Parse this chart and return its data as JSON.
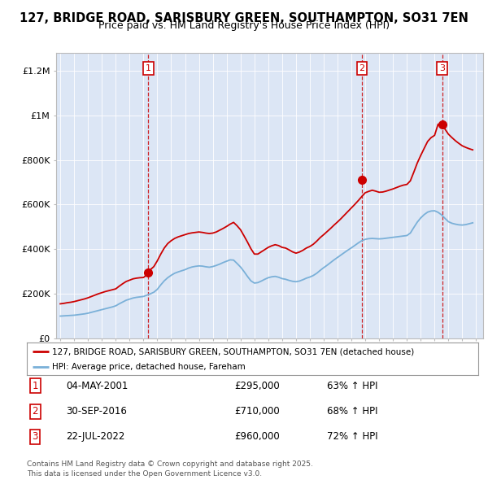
{
  "title": "127, BRIDGE ROAD, SARISBURY GREEN, SOUTHAMPTON, SO31 7EN",
  "subtitle": "Price paid vs. HM Land Registry's House Price Index (HPI)",
  "title_fontsize": 10.5,
  "subtitle_fontsize": 9,
  "background_color": "#ffffff",
  "plot_bg_color": "#dce6f5",
  "grid_color": "#ffffff",
  "ylabel_ticks": [
    "£0",
    "£200K",
    "£400K",
    "£600K",
    "£800K",
    "£1M",
    "£1.2M"
  ],
  "ytick_values": [
    0,
    200000,
    400000,
    600000,
    800000,
    1000000,
    1200000
  ],
  "ylim": [
    0,
    1280000
  ],
  "xlim_start": 1994.7,
  "xlim_end": 2025.5,
  "hpi_color": "#7ab0d8",
  "price_color": "#cc0000",
  "sale_marker_color": "#cc0000",
  "sale_dashed_color": "#cc0000",
  "legend_label_red": "127, BRIDGE ROAD, SARISBURY GREEN, SOUTHAMPTON, SO31 7EN (detached house)",
  "legend_label_blue": "HPI: Average price, detached house, Fareham",
  "sales": [
    {
      "num": 1,
      "date_str": "04-MAY-2001",
      "year": 2001.35,
      "price": 295000,
      "pct": "63%",
      "dir": "↑"
    },
    {
      "num": 2,
      "date_str": "30-SEP-2016",
      "year": 2016.75,
      "price": 710000,
      "pct": "68%",
      "dir": "↑"
    },
    {
      "num": 3,
      "date_str": "22-JUL-2022",
      "year": 2022.55,
      "price": 960000,
      "pct": "72%",
      "dir": "↑"
    }
  ],
  "footer": "Contains HM Land Registry data © Crown copyright and database right 2025.\nThis data is licensed under the Open Government Licence v3.0.",
  "hpi_data_x": [
    1995.0,
    1995.25,
    1995.5,
    1995.75,
    1996.0,
    1996.25,
    1996.5,
    1996.75,
    1997.0,
    1997.25,
    1997.5,
    1997.75,
    1998.0,
    1998.25,
    1998.5,
    1998.75,
    1999.0,
    1999.25,
    1999.5,
    1999.75,
    2000.0,
    2000.25,
    2000.5,
    2000.75,
    2001.0,
    2001.25,
    2001.5,
    2001.75,
    2002.0,
    2002.25,
    2002.5,
    2002.75,
    2003.0,
    2003.25,
    2003.5,
    2003.75,
    2004.0,
    2004.25,
    2004.5,
    2004.75,
    2005.0,
    2005.25,
    2005.5,
    2005.75,
    2006.0,
    2006.25,
    2006.5,
    2006.75,
    2007.0,
    2007.25,
    2007.5,
    2007.75,
    2008.0,
    2008.25,
    2008.5,
    2008.75,
    2009.0,
    2009.25,
    2009.5,
    2009.75,
    2010.0,
    2010.25,
    2010.5,
    2010.75,
    2011.0,
    2011.25,
    2011.5,
    2011.75,
    2012.0,
    2012.25,
    2012.5,
    2012.75,
    2013.0,
    2013.25,
    2013.5,
    2013.75,
    2014.0,
    2014.25,
    2014.5,
    2014.75,
    2015.0,
    2015.25,
    2015.5,
    2015.75,
    2016.0,
    2016.25,
    2016.5,
    2016.75,
    2017.0,
    2017.25,
    2017.5,
    2017.75,
    2018.0,
    2018.25,
    2018.5,
    2018.75,
    2019.0,
    2019.25,
    2019.5,
    2019.75,
    2020.0,
    2020.25,
    2020.5,
    2020.75,
    2021.0,
    2021.25,
    2021.5,
    2021.75,
    2022.0,
    2022.25,
    2022.5,
    2022.75,
    2023.0,
    2023.25,
    2023.5,
    2023.75,
    2024.0,
    2024.25,
    2024.5,
    2024.75
  ],
  "hpi_data_y": [
    100000,
    101000,
    102000,
    103000,
    104000,
    106000,
    108000,
    110000,
    113000,
    117000,
    121000,
    125000,
    129000,
    133000,
    137000,
    141000,
    146000,
    155000,
    163000,
    171000,
    176000,
    181000,
    184000,
    186000,
    188000,
    194000,
    200000,
    207000,
    220000,
    240000,
    258000,
    272000,
    283000,
    292000,
    298000,
    303000,
    308000,
    315000,
    320000,
    323000,
    325000,
    324000,
    321000,
    319000,
    322000,
    327000,
    333000,
    340000,
    346000,
    352000,
    351000,
    336000,
    320000,
    300000,
    278000,
    258000,
    248000,
    250000,
    257000,
    265000,
    272000,
    276000,
    278000,
    274000,
    268000,
    265000,
    260000,
    256000,
    254000,
    257000,
    263000,
    270000,
    275000,
    282000,
    292000,
    305000,
    317000,
    328000,
    340000,
    352000,
    363000,
    374000,
    385000,
    396000,
    406000,
    417000,
    428000,
    438000,
    444000,
    447000,
    448000,
    447000,
    446000,
    447000,
    449000,
    451000,
    453000,
    455000,
    457000,
    459000,
    461000,
    472000,
    497000,
    521000,
    540000,
    555000,
    566000,
    571000,
    572000,
    565000,
    554000,
    538000,
    523000,
    516000,
    512000,
    509000,
    508000,
    510000,
    514000,
    518000
  ],
  "price_data_x": [
    1995.0,
    1995.25,
    1995.5,
    1995.75,
    1996.0,
    1996.25,
    1996.5,
    1996.75,
    1997.0,
    1997.25,
    1997.5,
    1997.75,
    1998.0,
    1998.25,
    1998.5,
    1998.75,
    1999.0,
    1999.25,
    1999.5,
    1999.75,
    2000.0,
    2000.25,
    2000.5,
    2000.75,
    2001.0,
    2001.25,
    2001.35,
    2001.5,
    2001.75,
    2002.0,
    2002.25,
    2002.5,
    2002.75,
    2003.0,
    2003.25,
    2003.5,
    2003.75,
    2004.0,
    2004.25,
    2004.5,
    2004.75,
    2005.0,
    2005.25,
    2005.5,
    2005.75,
    2006.0,
    2006.25,
    2006.5,
    2006.75,
    2007.0,
    2007.25,
    2007.5,
    2007.75,
    2008.0,
    2008.25,
    2008.5,
    2008.75,
    2009.0,
    2009.25,
    2009.5,
    2009.75,
    2010.0,
    2010.25,
    2010.5,
    2010.75,
    2011.0,
    2011.25,
    2011.5,
    2011.75,
    2012.0,
    2012.25,
    2012.5,
    2012.75,
    2013.0,
    2013.25,
    2013.5,
    2013.75,
    2014.0,
    2014.25,
    2014.5,
    2014.75,
    2015.0,
    2015.25,
    2015.5,
    2015.75,
    2016.0,
    2016.25,
    2016.5,
    2016.75,
    2017.0,
    2017.25,
    2017.5,
    2017.75,
    2018.0,
    2018.25,
    2018.5,
    2018.75,
    2019.0,
    2019.25,
    2019.5,
    2019.75,
    2020.0,
    2020.25,
    2020.5,
    2020.75,
    2021.0,
    2021.25,
    2021.5,
    2021.75,
    2022.0,
    2022.25,
    2022.55,
    2022.75,
    2023.0,
    2023.25,
    2023.5,
    2023.75,
    2024.0,
    2024.25,
    2024.5,
    2024.75
  ],
  "price_data_y": [
    155000,
    157000,
    160000,
    162000,
    165000,
    169000,
    173000,
    177000,
    182000,
    188000,
    194000,
    200000,
    205000,
    210000,
    214000,
    218000,
    222000,
    234000,
    245000,
    255000,
    261000,
    267000,
    270000,
    272000,
    273000,
    285000,
    295000,
    308000,
    322000,
    348000,
    378000,
    405000,
    425000,
    438000,
    448000,
    455000,
    460000,
    465000,
    470000,
    473000,
    475000,
    477000,
    475000,
    472000,
    470000,
    472000,
    477000,
    485000,
    493000,
    502000,
    512000,
    520000,
    505000,
    487000,
    460000,
    432000,
    402000,
    378000,
    378000,
    388000,
    398000,
    408000,
    415000,
    420000,
    416000,
    408000,
    405000,
    397000,
    388000,
    382000,
    387000,
    395000,
    405000,
    412000,
    422000,
    436000,
    452000,
    465000,
    479000,
    493000,
    508000,
    522000,
    537000,
    553000,
    569000,
    585000,
    601000,
    618000,
    636000,
    653000,
    659000,
    664000,
    660000,
    655000,
    656000,
    660000,
    665000,
    670000,
    676000,
    682000,
    687000,
    690000,
    706000,
    745000,
    786000,
    820000,
    852000,
    883000,
    900000,
    910000,
    960000,
    960000,
    938000,
    915000,
    900000,
    886000,
    874000,
    863000,
    856000,
    850000,
    845000
  ]
}
